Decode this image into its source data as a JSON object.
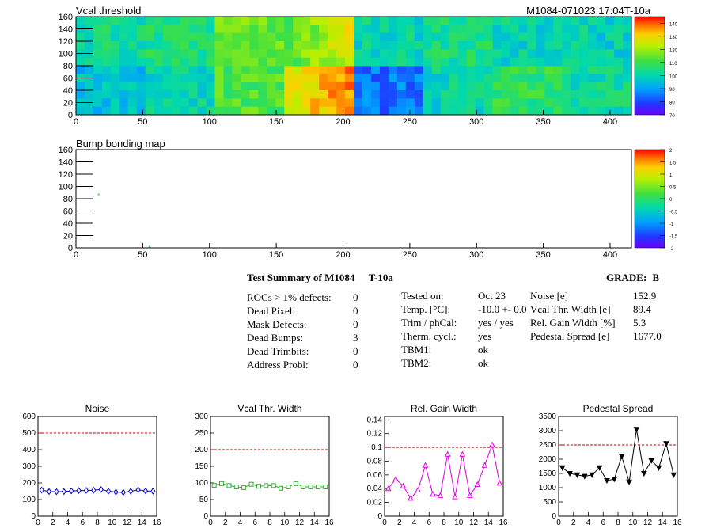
{
  "top_map": {
    "title": "Vcal threshold",
    "tag": "M1084-071023.17:04T-10a",
    "x_ticks": [
      0,
      50,
      100,
      150,
      200,
      250,
      300,
      350,
      400
    ],
    "y_ticks": [
      0,
      20,
      40,
      60,
      80,
      100,
      120,
      140,
      160
    ],
    "xlim": [
      0,
      416
    ],
    "ylim": [
      0,
      160
    ],
    "colorbar_ticks": [
      70,
      80,
      90,
      100,
      110,
      120,
      130,
      140
    ],
    "colorbar_range": [
      70,
      145
    ]
  },
  "bump_map": {
    "title": "Bump bonding map",
    "x_ticks": [
      0,
      50,
      100,
      150,
      200,
      250,
      300,
      350,
      400
    ],
    "y_ticks": [
      0,
      20,
      40,
      60,
      80,
      100,
      120,
      140,
      160
    ],
    "xlim": [
      0,
      416
    ],
    "ylim": [
      0,
      160
    ],
    "colorbar_ticks": [
      2,
      1.5,
      1,
      0.5,
      0,
      -0.5,
      -1,
      -1.5,
      -2
    ],
    "colorbar_range": [
      -2,
      2
    ],
    "points": [
      {
        "x": 17,
        "y": 87
      },
      {
        "x": 55,
        "y": 2
      }
    ]
  },
  "summary": {
    "title": "Test Summary of M1084",
    "temp_tag": "T-10a",
    "grade_label": "GRADE:",
    "grade_value": "B",
    "col1": [
      {
        "label": "ROCs > 1% defects:",
        "value": "0"
      },
      {
        "label": "Dead Pixel:",
        "value": "0"
      },
      {
        "label": "Mask Defects:",
        "value": "0"
      },
      {
        "label": "Dead Bumps:",
        "value": "3"
      },
      {
        "label": "Dead Trimbits:",
        "value": "0"
      },
      {
        "label": "Address Probl:",
        "value": "0"
      }
    ],
    "col2": [
      {
        "label": "Tested on:",
        "value": "Oct 23"
      },
      {
        "label": "Temp. [°C]:",
        "value": "-10.0 +- 0.0"
      },
      {
        "label": "Trim / phCal:",
        "value": "yes / yes"
      },
      {
        "label": "Therm. cycl.:",
        "value": "yes"
      },
      {
        "label": "TBM1:",
        "value": "ok"
      },
      {
        "label": "TBM2:",
        "value": "ok"
      }
    ],
    "col3": [
      {
        "label": "Noise [e]",
        "value": "152.9"
      },
      {
        "label": "Vcal Thr. Width [e]",
        "value": "89.4"
      },
      {
        "label": "Rel. Gain Width [%]",
        "value": "5.3"
      },
      {
        "label": "Pedestal Spread [e]",
        "value": "1677.0"
      }
    ]
  },
  "chart_data": [
    {
      "type": "line",
      "title": "Noise",
      "x": [
        0,
        1,
        2,
        3,
        4,
        5,
        6,
        7,
        8,
        9,
        10,
        11,
        12,
        13,
        14,
        15
      ],
      "values": [
        157,
        148,
        147,
        148,
        152,
        154,
        155,
        156,
        160,
        150,
        145,
        143,
        150,
        158,
        152,
        150
      ],
      "xlim": [
        0,
        16
      ],
      "ylim": [
        0,
        600
      ],
      "y_ticks": [
        0,
        100,
        200,
        300,
        400,
        500,
        600
      ],
      "x_ticks": [
        0,
        2,
        4,
        6,
        8,
        10,
        12,
        14,
        16
      ],
      "threshold": 500,
      "color": "#0000cc",
      "marker": "diamond"
    },
    {
      "type": "line",
      "title": "Vcal Thr. Width",
      "x": [
        0,
        1,
        2,
        3,
        4,
        5,
        6,
        7,
        8,
        9,
        10,
        11,
        12,
        13,
        14,
        15
      ],
      "values": [
        93,
        98,
        92,
        88,
        86,
        96,
        90,
        92,
        92,
        84,
        88,
        98,
        88,
        88,
        88,
        88
      ],
      "xlim": [
        0,
        16
      ],
      "ylim": [
        0,
        300
      ],
      "y_ticks": [
        0,
        50,
        100,
        150,
        200,
        250,
        300
      ],
      "x_ticks": [
        0,
        2,
        4,
        6,
        8,
        10,
        12,
        14,
        16
      ],
      "threshold": 200,
      "color": "#33aa33",
      "marker": "square"
    },
    {
      "type": "line",
      "title": "Rel. Gain Width",
      "x": [
        0,
        1,
        2,
        3,
        4,
        5,
        6,
        7,
        8,
        9,
        10,
        11,
        12,
        13,
        14,
        15
      ],
      "values": [
        0.04,
        0.054,
        0.044,
        0.026,
        0.038,
        0.074,
        0.032,
        0.03,
        0.09,
        0.028,
        0.09,
        0.03,
        0.046,
        0.074,
        0.104,
        0.048
      ],
      "xlim": [
        0,
        16
      ],
      "ylim": [
        0,
        0.145
      ],
      "y_ticks": [
        0,
        0.02,
        0.04,
        0.06,
        0.08,
        0.1,
        0.12,
        0.14
      ],
      "x_ticks": [
        0,
        2,
        4,
        6,
        8,
        10,
        12,
        14,
        16
      ],
      "threshold": 0.1,
      "color": "#dd00dd",
      "marker": "triangle-up"
    },
    {
      "type": "line",
      "title": "Pedestal Spread",
      "x": [
        0,
        1,
        2,
        3,
        4,
        5,
        6,
        7,
        8,
        9,
        10,
        11,
        12,
        13,
        14,
        15
      ],
      "values": [
        1700,
        1500,
        1450,
        1400,
        1450,
        1700,
        1250,
        1300,
        2100,
        1200,
        3050,
        1500,
        1950,
        1700,
        2550,
        1450
      ],
      "xlim": [
        0,
        16
      ],
      "ylim": [
        0,
        3500
      ],
      "y_ticks": [
        0,
        500,
        1000,
        1500,
        2000,
        2500,
        3000,
        3500
      ],
      "x_ticks": [
        0,
        2,
        4,
        6,
        8,
        10,
        12,
        14,
        16
      ],
      "threshold": 2500,
      "color": "#000000",
      "marker": "triangle-down"
    }
  ]
}
